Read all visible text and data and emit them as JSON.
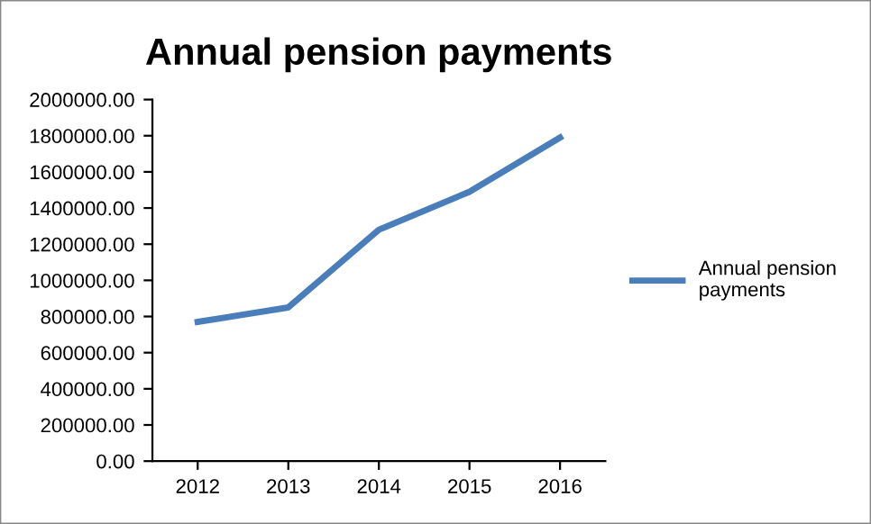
{
  "chart_data": {
    "type": "line",
    "title": "Annual pension payments",
    "categories": [
      "2012",
      "2013",
      "2014",
      "2015",
      "2016"
    ],
    "series": [
      {
        "name": "Annual pension payments",
        "color": "#4a7ebb",
        "values": [
          770000,
          850000,
          1280000,
          1490000,
          1790000
        ]
      }
    ],
    "ylim": [
      0,
      2000000
    ],
    "yticks": [
      {
        "value": 0,
        "label": "0.00"
      },
      {
        "value": 200000,
        "label": "200000.00"
      },
      {
        "value": 400000,
        "label": "400000.00"
      },
      {
        "value": 600000,
        "label": "600000.00"
      },
      {
        "value": 800000,
        "label": "800000.00"
      },
      {
        "value": 1000000,
        "label": "1000000.00"
      },
      {
        "value": 1200000,
        "label": "1200000.00"
      },
      {
        "value": 1400000,
        "label": "1400000.00"
      },
      {
        "value": 1600000,
        "label": "1600000.00"
      },
      {
        "value": 1800000,
        "label": "1800000.00"
      },
      {
        "value": 2000000,
        "label": "2000000.00"
      }
    ],
    "grid": false,
    "legend": "right",
    "marker": "none",
    "line_style": "solid"
  }
}
